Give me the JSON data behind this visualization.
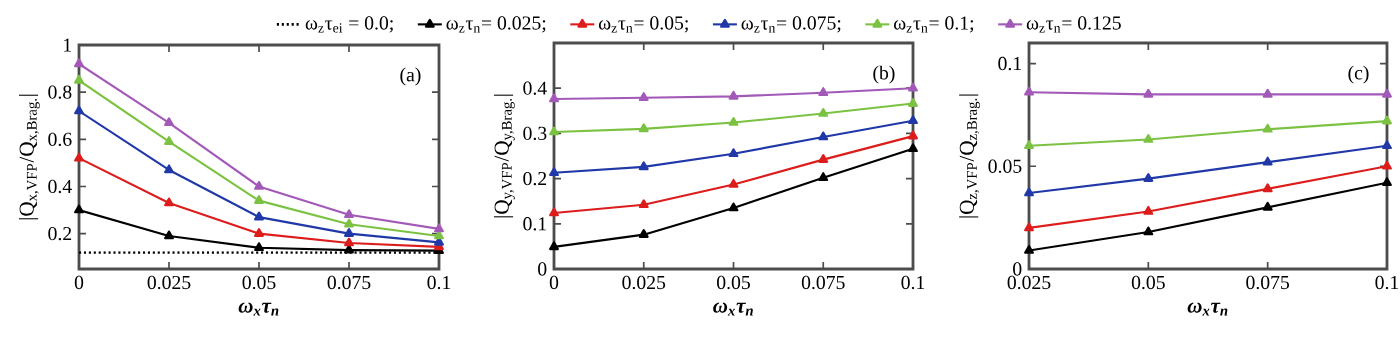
{
  "chart_data": [
    {
      "type": "line",
      "xlabel": "ω$_{x}$τ$_{n}$",
      "ylabel": "|Q$_{x,VFP}$/Q$_{x,Brag.}$|",
      "annotations": [
        "(a)"
      ],
      "x": [
        0,
        0.025,
        0.05,
        0.075,
        0.1
      ],
      "xlim": [
        0,
        0.1
      ],
      "xticks": [
        0,
        0.025,
        0.05,
        0.075,
        0.1
      ],
      "ylim": [
        0.05,
        1
      ],
      "yticks": [
        0.2,
        0.4,
        0.6,
        0.8,
        1
      ],
      "legend": "top",
      "marker": "triangle",
      "line_style": "solid",
      "series": [
        {
          "name": "ω$_{z}$τ$_{ei}$ = 0.0;",
          "color": "#000000",
          "marker": "none",
          "line_style": "dotted",
          "values": [
            0.12,
            0.12,
            0.12,
            0.12,
            0.12
          ]
        },
        {
          "name": "ω$_{z}$τ$_{n}$= 0.025;",
          "color": "#000000",
          "values": [
            0.3,
            0.19,
            0.14,
            0.13,
            0.128
          ]
        },
        {
          "name": "ω$_{z}$τ$_{n}$= 0.05;",
          "color": "#dd1c1c",
          "values": [
            0.52,
            0.33,
            0.2,
            0.16,
            0.144
          ]
        },
        {
          "name": "ω$_{z}$τ$_{n}$= 0.075;",
          "color": "#2038a8",
          "values": [
            0.72,
            0.47,
            0.27,
            0.2,
            0.163
          ]
        },
        {
          "name": "ω$_{z}$τ$_{n}$= 0.1;",
          "color": "#7cc242",
          "values": [
            0.85,
            0.59,
            0.34,
            0.24,
            0.19
          ]
        },
        {
          "name": "ω$_{z}$τ$_{n}$= 0.125",
          "color": "#a259b8",
          "values": [
            0.92,
            0.67,
            0.4,
            0.28,
            0.22
          ]
        }
      ]
    },
    {
      "type": "line",
      "xlabel": "ω$_{x}$τ$_{n}$",
      "ylabel": "|Q$_{y,VFP}$/Q$_{y,Brag.}$|",
      "annotations": [
        "(b)"
      ],
      "x": [
        0,
        0.025,
        0.05,
        0.075,
        0.1
      ],
      "xlim": [
        0,
        0.1
      ],
      "xticks": [
        0,
        0.025,
        0.05,
        0.075,
        0.1
      ],
      "ylim": [
        0,
        0.5
      ],
      "yticks": [
        0,
        0.1,
        0.2,
        0.3,
        0.4
      ],
      "marker": "triangle",
      "line_style": "solid",
      "series": [
        {
          "color": "#000000",
          "values": [
            0.049,
            0.076,
            0.135,
            0.202,
            0.266
          ]
        },
        {
          "color": "#dd1c1c",
          "values": [
            0.124,
            0.142,
            0.187,
            0.242,
            0.294
          ]
        },
        {
          "color": "#2038a8",
          "values": [
            0.213,
            0.226,
            0.255,
            0.292,
            0.328
          ]
        },
        {
          "color": "#7cc242",
          "values": [
            0.303,
            0.31,
            0.324,
            0.344,
            0.366
          ]
        },
        {
          "color": "#a259b8",
          "values": [
            0.376,
            0.379,
            0.382,
            0.39,
            0.4
          ]
        }
      ]
    },
    {
      "type": "line",
      "xlabel": "ω$_{x}$τ$_{n}$",
      "ylabel": "|Q$_{z,VFP}$/Q$_{z,Brag.}$|",
      "annotations": [
        "(c)"
      ],
      "x": [
        0.025,
        0.05,
        0.075,
        0.1
      ],
      "xlim": [
        0.025,
        0.1
      ],
      "xticks": [
        0.025,
        0.05,
        0.075,
        0.1
      ],
      "ylim": [
        0,
        0.11
      ],
      "yticks": [
        0,
        0.05,
        0.1
      ],
      "marker": "triangle",
      "line_style": "solid",
      "series": [
        {
          "color": "#000000",
          "values": [
            0.009,
            0.018,
            0.03,
            0.042
          ]
        },
        {
          "color": "#dd1c1c",
          "values": [
            0.02,
            0.028,
            0.039,
            0.05
          ]
        },
        {
          "color": "#2038a8",
          "values": [
            0.037,
            0.044,
            0.052,
            0.06
          ]
        },
        {
          "color": "#7cc242",
          "values": [
            0.06,
            0.063,
            0.068,
            0.072
          ]
        },
        {
          "color": "#a259b8",
          "values": [
            0.086,
            0.085,
            0.085,
            0.085
          ]
        }
      ]
    }
  ]
}
